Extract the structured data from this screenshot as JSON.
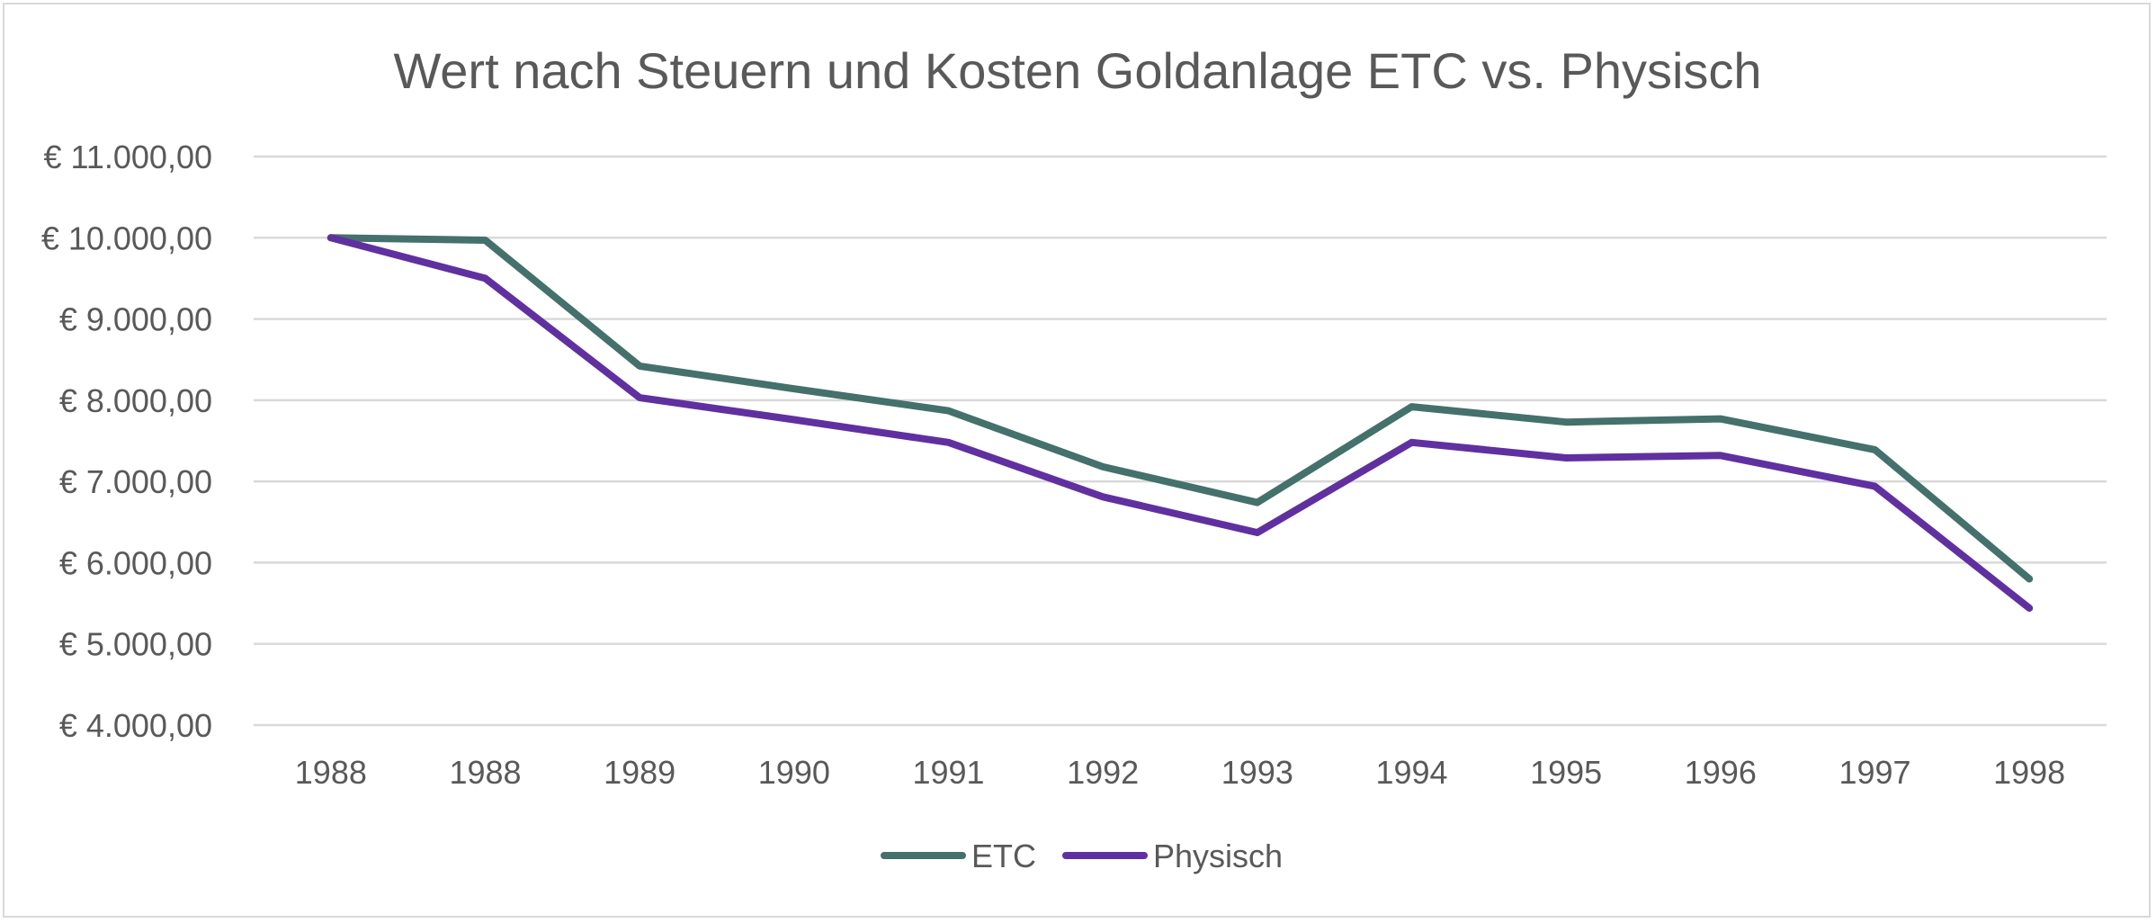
{
  "chart_data": {
    "type": "line",
    "title": "Wert nach Steuern und Kosten Goldanlage ETC vs. Physisch",
    "xlabel": "",
    "ylabel": "",
    "categories": [
      "1988",
      "1988",
      "1989",
      "1990",
      "1991",
      "1992",
      "1993",
      "1994",
      "1995",
      "1996",
      "1997",
      "1998"
    ],
    "ylim": [
      4000,
      11000
    ],
    "yticks": [
      4000,
      5000,
      6000,
      7000,
      8000,
      9000,
      10000,
      11000
    ],
    "ytick_labels": [
      "€ 4.000,00",
      "€ 5.000,00",
      "€ 6.000,00",
      "€ 7.000,00",
      "€ 8.000,00",
      "€ 9.000,00",
      "€ 10.000,00",
      "€ 11.000,00"
    ],
    "grid": true,
    "legend_position": "bottom",
    "series": [
      {
        "name": "ETC",
        "color": "#44716b",
        "values": [
          10000,
          9970,
          8420,
          8140,
          7870,
          7180,
          6740,
          7920,
          7730,
          7770,
          7390,
          5800
        ]
      },
      {
        "name": "Physisch",
        "color": "#6030a0",
        "values": [
          10000,
          9500,
          8030,
          7760,
          7480,
          6810,
          6370,
          7480,
          7290,
          7320,
          6940,
          5440
        ]
      }
    ]
  }
}
